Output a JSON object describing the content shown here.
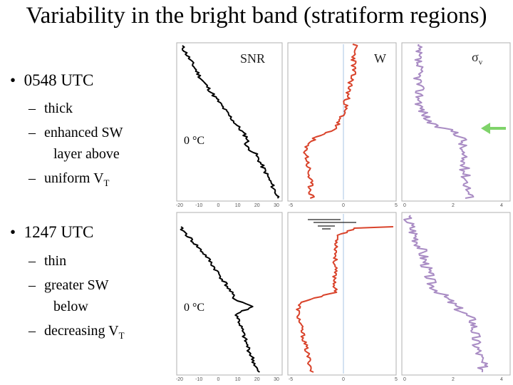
{
  "slide": {
    "title": "Variability in the bright band (stratiform regions)",
    "bullets": [
      {
        "heading": "0548 UTC",
        "items": [
          {
            "text": "thick"
          },
          {
            "line1": "enhanced SW",
            "line2": "layer above"
          },
          {
            "text": "uniform V",
            "sub": "T"
          }
        ]
      },
      {
        "heading": "1247 UTC",
        "items": [
          {
            "text": "thin"
          },
          {
            "line1": "greater SW",
            "line2": "below"
          },
          {
            "text": "decreasing V",
            "sub": "T"
          }
        ]
      }
    ]
  },
  "figure": {
    "panel_labels": {
      "snr": "SNR",
      "w": "W",
      "sigma": "σ",
      "sigma_sub": "v"
    },
    "zero_label": "0 °C",
    "colors": {
      "snr": "#000000",
      "w": "#d9432b",
      "sigma": "#a98cc4",
      "arrow": "#7fd36a",
      "axis": "#9a9a9a",
      "frame": "#b0b0b0"
    },
    "top_row": {
      "snr_x_ticks": [
        "-20",
        "-10",
        "0",
        "10",
        "20",
        "30"
      ],
      "w_x_ticks": [
        "-5",
        "0",
        "5"
      ],
      "sigma_x_ticks": [
        "0",
        "2",
        "4"
      ]
    },
    "bottom_row": {
      "snr_x_ticks": [
        "-20",
        "-10",
        "0",
        "10",
        "20",
        "30"
      ],
      "w_x_ticks": [
        "-5",
        "0",
        "5"
      ],
      "sigma_x_ticks": [
        "0",
        "2",
        "4"
      ]
    }
  }
}
